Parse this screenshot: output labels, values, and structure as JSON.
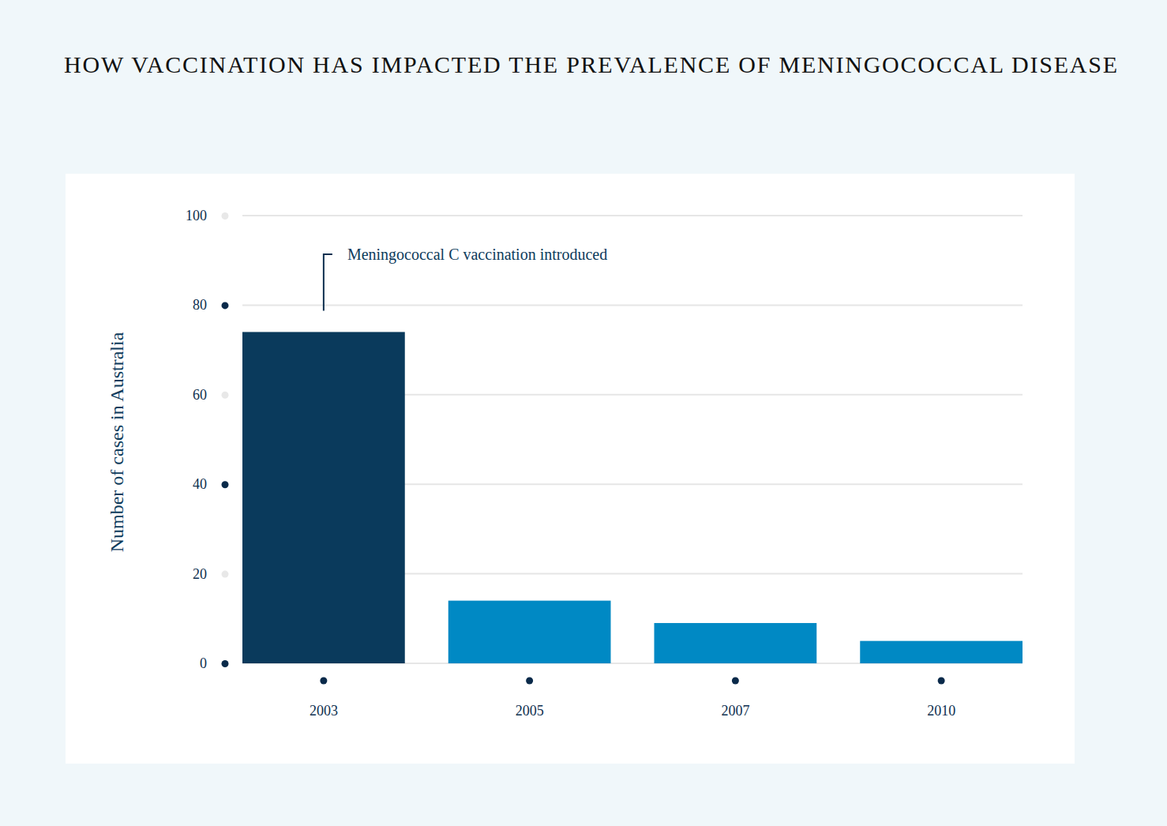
{
  "chart_data": {
    "type": "bar",
    "title": "HOW VACCINATION HAS IMPACTED THE PREVALENCE OF MENINGOCOCCAL DISEASE",
    "y_label": "Number of cases in Australia",
    "categories": [
      "2003",
      "2005",
      "2007",
      "2010"
    ],
    "values": [
      74,
      14,
      9,
      5
    ],
    "colors": [
      "#0a3a5c",
      "#0089c4",
      "#0089c4",
      "#0089c4"
    ],
    "ylim": [
      0,
      100
    ],
    "yticks": [
      0,
      20,
      40,
      60,
      80,
      100
    ],
    "grid": true,
    "annotations": [
      {
        "text": "Meningococcal C vaccination introduced",
        "x": "2003"
      }
    ]
  }
}
